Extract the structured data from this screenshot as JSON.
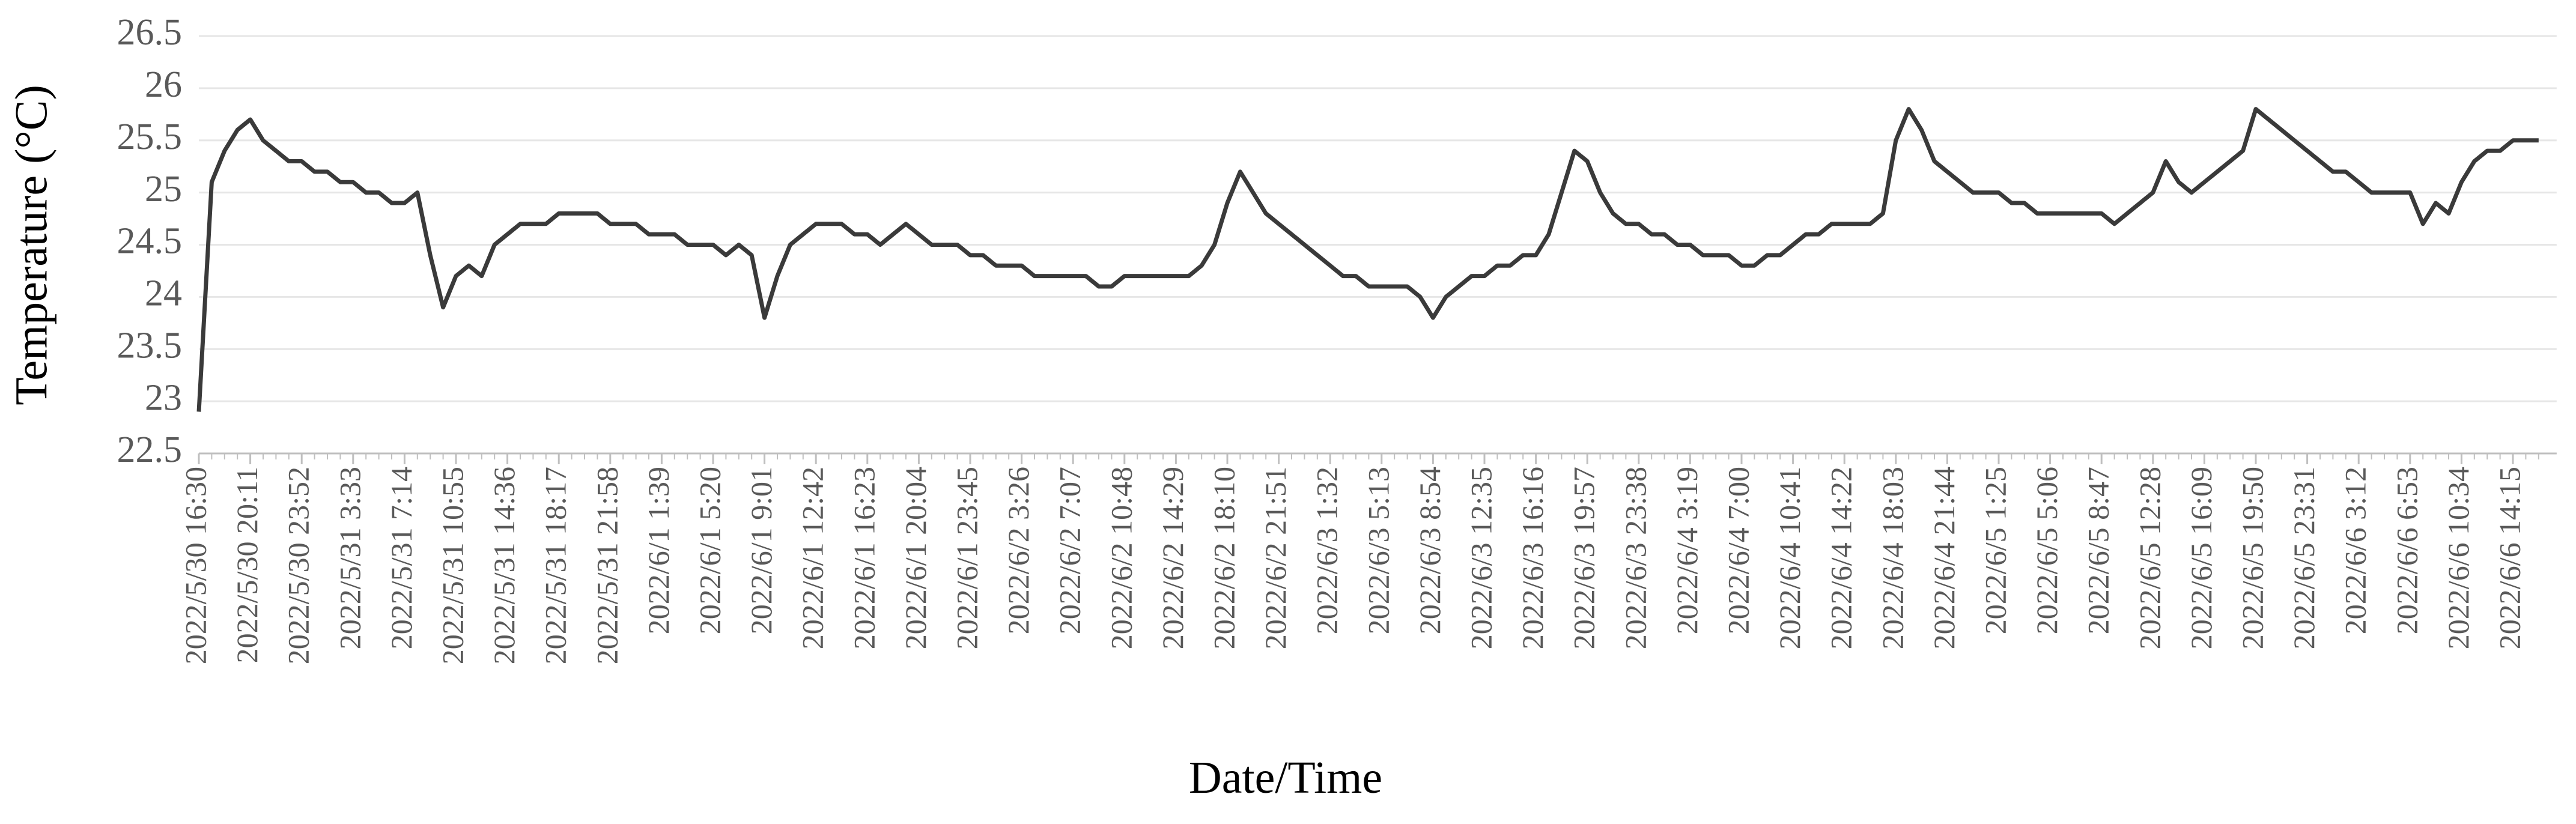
{
  "chart_data": {
    "type": "line",
    "y_label": "Temperature (°C)",
    "x_label": "Date/Time",
    "color": "#3a3a3a",
    "grid": true,
    "ylim": [
      22.5,
      26.5
    ],
    "yticks": [
      22.5,
      23,
      23.5,
      24,
      24.5,
      25,
      25.5,
      26,
      26.5
    ],
    "categories": [
      "2022/5/30 16:30",
      null,
      null,
      null,
      "2022/5/30 20:11",
      null,
      null,
      null,
      "2022/5/30 23:52",
      null,
      null,
      null,
      "2022/5/31 3:33",
      null,
      null,
      null,
      "2022/5/31 7:14",
      null,
      null,
      null,
      "2022/5/31 10:55",
      null,
      null,
      null,
      "2022/5/31 14:36",
      null,
      null,
      null,
      "2022/5/31 18:17",
      null,
      null,
      null,
      "2022/5/31 21:58",
      null,
      null,
      null,
      "2022/6/1 1:39",
      null,
      null,
      null,
      "2022/6/1 5:20",
      null,
      null,
      null,
      "2022/6/1 9:01",
      null,
      null,
      null,
      "2022/6/1 12:42",
      null,
      null,
      null,
      "2022/6/1 16:23",
      null,
      null,
      null,
      "2022/6/1 20:04",
      null,
      null,
      null,
      "2022/6/1 23:45",
      null,
      null,
      null,
      "2022/6/2 3:26",
      null,
      null,
      null,
      "2022/6/2 7:07",
      null,
      null,
      null,
      "2022/6/2 10:48",
      null,
      null,
      null,
      "2022/6/2 14:29",
      null,
      null,
      null,
      "2022/6/2 18:10",
      null,
      null,
      null,
      "2022/6/2 21:51",
      null,
      null,
      null,
      "2022/6/3 1:32",
      null,
      null,
      null,
      "2022/6/3 5:13",
      null,
      null,
      null,
      "2022/6/3 8:54",
      null,
      null,
      null,
      "2022/6/3 12:35",
      null,
      null,
      null,
      "2022/6/3 16:16",
      null,
      null,
      null,
      "2022/6/3 19:57",
      null,
      null,
      null,
      "2022/6/3 23:38",
      null,
      null,
      null,
      "2022/6/4 3:19",
      null,
      null,
      null,
      "2022/6/4 7:00",
      null,
      null,
      null,
      "2022/6/4 10:41",
      null,
      null,
      null,
      "2022/6/4 14:22",
      null,
      null,
      null,
      "2022/6/4 18:03",
      null,
      null,
      null,
      "2022/6/4 21:44",
      null,
      null,
      null,
      "2022/6/5 1:25",
      null,
      null,
      null,
      "2022/6/5 5:06",
      null,
      null,
      null,
      "2022/6/5 8:47",
      null,
      null,
      null,
      "2022/6/5 12:28",
      null,
      null,
      null,
      "2022/6/5 16:09",
      null,
      null,
      null,
      "2022/6/5 19:50",
      null,
      null,
      null,
      "2022/6/5 23:31",
      null,
      null,
      null,
      "2022/6/6 3:12",
      null,
      null,
      null,
      "2022/6/6 6:53",
      null,
      null,
      null,
      "2022/6/6 10:34",
      null,
      null,
      null,
      "2022/6/6 14:15",
      null,
      null
    ],
    "values": [
      22.9,
      25.1,
      25.4,
      25.6,
      25.7,
      25.5,
      25.4,
      25.3,
      25.3,
      25.2,
      25.2,
      25.1,
      25.1,
      25.0,
      25.0,
      24.9,
      24.9,
      25.0,
      24.4,
      23.9,
      24.2,
      24.3,
      24.2,
      24.5,
      24.6,
      24.7,
      24.7,
      24.7,
      24.8,
      24.8,
      24.8,
      24.8,
      24.7,
      24.7,
      24.7,
      24.6,
      24.6,
      24.6,
      24.5,
      24.5,
      24.5,
      24.4,
      24.5,
      24.4,
      23.8,
      24.2,
      24.5,
      24.6,
      24.7,
      24.7,
      24.7,
      24.6,
      24.6,
      24.5,
      24.6,
      24.7,
      24.6,
      24.5,
      24.5,
      24.5,
      24.4,
      24.4,
      24.3,
      24.3,
      24.3,
      24.2,
      24.2,
      24.2,
      24.2,
      24.2,
      24.1,
      24.1,
      24.2,
      24.2,
      24.2,
      24.2,
      24.2,
      24.2,
      24.3,
      24.5,
      24.9,
      25.2,
      25.0,
      24.8,
      24.7,
      24.6,
      24.5,
      24.4,
      24.3,
      24.2,
      24.2,
      24.1,
      24.1,
      24.1,
      24.1,
      24.0,
      23.8,
      24.0,
      24.1,
      24.2,
      24.2,
      24.3,
      24.3,
      24.4,
      24.4,
      24.6,
      25.0,
      25.4,
      25.3,
      25.0,
      24.8,
      24.7,
      24.7,
      24.6,
      24.6,
      24.5,
      24.5,
      24.4,
      24.4,
      24.4,
      24.3,
      24.3,
      24.4,
      24.4,
      24.5,
      24.6,
      24.6,
      24.7,
      24.7,
      24.7,
      24.7,
      24.8,
      25.5,
      25.8,
      25.6,
      25.3,
      25.2,
      25.1,
      25.0,
      25.0,
      25.0,
      24.9,
      24.9,
      24.8,
      24.8,
      24.8,
      24.8,
      24.8,
      24.8,
      24.7,
      24.8,
      24.9,
      25.0,
      25.3,
      25.1,
      25.0,
      25.1,
      25.2,
      25.3,
      25.4,
      25.8,
      25.7,
      25.6,
      25.5,
      25.4,
      25.3,
      25.2,
      25.2,
      25.1,
      25.0,
      25.0,
      25.0,
      25.0,
      24.7,
      24.9,
      24.8,
      25.1,
      25.3,
      25.4,
      25.4,
      25.5,
      25.5,
      25.5
    ]
  }
}
